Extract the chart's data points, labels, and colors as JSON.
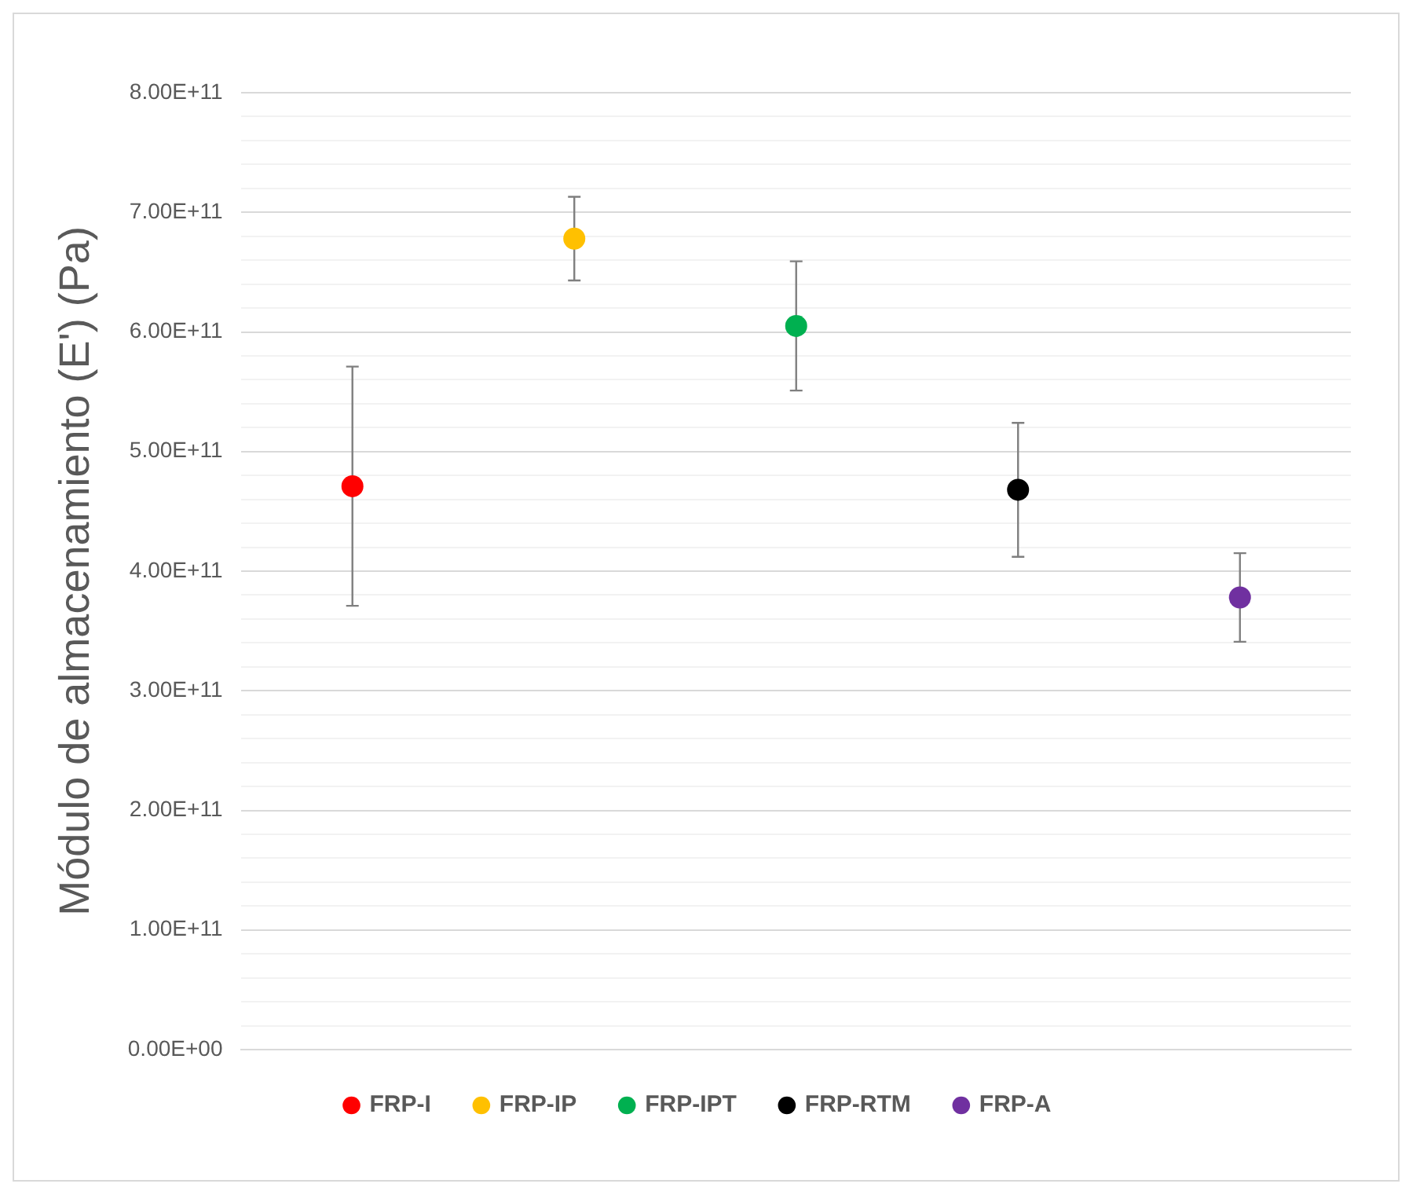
{
  "chart_data": {
    "type": "scatter",
    "ylabel": "Módulo de almacenamiento (E') (Pa)",
    "categories": [
      null,
      null,
      null,
      null,
      null
    ],
    "series": [
      {
        "name": "FRP-I",
        "color": "#ff0000",
        "values": [
          471000000000.0,
          null,
          null,
          null,
          null
        ],
        "errors": [
          100000000000.0,
          null,
          null,
          null,
          null
        ]
      },
      {
        "name": "FRP-IP",
        "color": "#ffc000",
        "values": [
          null,
          678000000000.0,
          null,
          null,
          null
        ],
        "errors": [
          null,
          35000000000.0,
          null,
          null,
          null
        ]
      },
      {
        "name": "FRP-IPT",
        "color": "#00b050",
        "values": [
          null,
          null,
          605000000000.0,
          null,
          null
        ],
        "errors": [
          null,
          null,
          54000000000.0,
          null,
          null
        ]
      },
      {
        "name": "FRP-RTM",
        "color": "#000000",
        "values": [
          null,
          null,
          null,
          468000000000.0,
          null
        ],
        "errors": [
          null,
          null,
          null,
          56000000000.0,
          null
        ]
      },
      {
        "name": "FRP-A",
        "color": "#7030a0",
        "values": [
          null,
          null,
          null,
          null,
          378000000000.0
        ],
        "errors": [
          null,
          null,
          null,
          null,
          37000000000.0
        ]
      }
    ],
    "ylim": [
      0,
      800000000000.0
    ],
    "yticks": [
      {
        "value": 0,
        "label": "0.00E+00"
      },
      {
        "value": 20000000000.0,
        "label": null
      },
      {
        "value": 40000000000.0,
        "label": null
      },
      {
        "value": 60000000000.0,
        "label": null
      },
      {
        "value": 80000000000.0,
        "label": null
      },
      {
        "value": 100000000000.0,
        "label": "1.00E+11"
      },
      {
        "value": 120000000000.0,
        "label": null
      },
      {
        "value": 140000000000.0,
        "label": null
      },
      {
        "value": 160000000000.0,
        "label": null
      },
      {
        "value": 180000000000.0,
        "label": null
      },
      {
        "value": 200000000000.0,
        "label": "2.00E+11"
      },
      {
        "value": 220000000000.0,
        "label": null
      },
      {
        "value": 240000000000.0,
        "label": null
      },
      {
        "value": 260000000000.0,
        "label": null
      },
      {
        "value": 280000000000.0,
        "label": null
      },
      {
        "value": 300000000000.0,
        "label": "3.00E+11"
      },
      {
        "value": 320000000000.0,
        "label": null
      },
      {
        "value": 340000000000.0,
        "label": null
      },
      {
        "value": 360000000000.0,
        "label": null
      },
      {
        "value": 380000000000.0,
        "label": null
      },
      {
        "value": 400000000000.0,
        "label": "4.00E+11"
      },
      {
        "value": 420000000000.0,
        "label": null
      },
      {
        "value": 440000000000.0,
        "label": null
      },
      {
        "value": 460000000000.0,
        "label": null
      },
      {
        "value": 480000000000.0,
        "label": null
      },
      {
        "value": 500000000000.0,
        "label": "5.00E+11"
      },
      {
        "value": 520000000000.0,
        "label": null
      },
      {
        "value": 540000000000.0,
        "label": null
      },
      {
        "value": 560000000000.0,
        "label": null
      },
      {
        "value": 580000000000.0,
        "label": null
      },
      {
        "value": 600000000000.0,
        "label": "6.00E+11"
      },
      {
        "value": 620000000000.0,
        "label": null
      },
      {
        "value": 640000000000.0,
        "label": null
      },
      {
        "value": 660000000000.0,
        "label": null
      },
      {
        "value": 680000000000.0,
        "label": null
      },
      {
        "value": 700000000000.0,
        "label": "7.00E+11"
      },
      {
        "value": 720000000000.0,
        "label": null
      },
      {
        "value": 740000000000.0,
        "label": null
      },
      {
        "value": 760000000000.0,
        "label": null
      },
      {
        "value": 780000000000.0,
        "label": null
      },
      {
        "value": 800000000000.0,
        "label": "8.00E+11"
      }
    ],
    "grid": "y",
    "legend": "bottom",
    "marker": "circle",
    "tick_labels": "y"
  }
}
